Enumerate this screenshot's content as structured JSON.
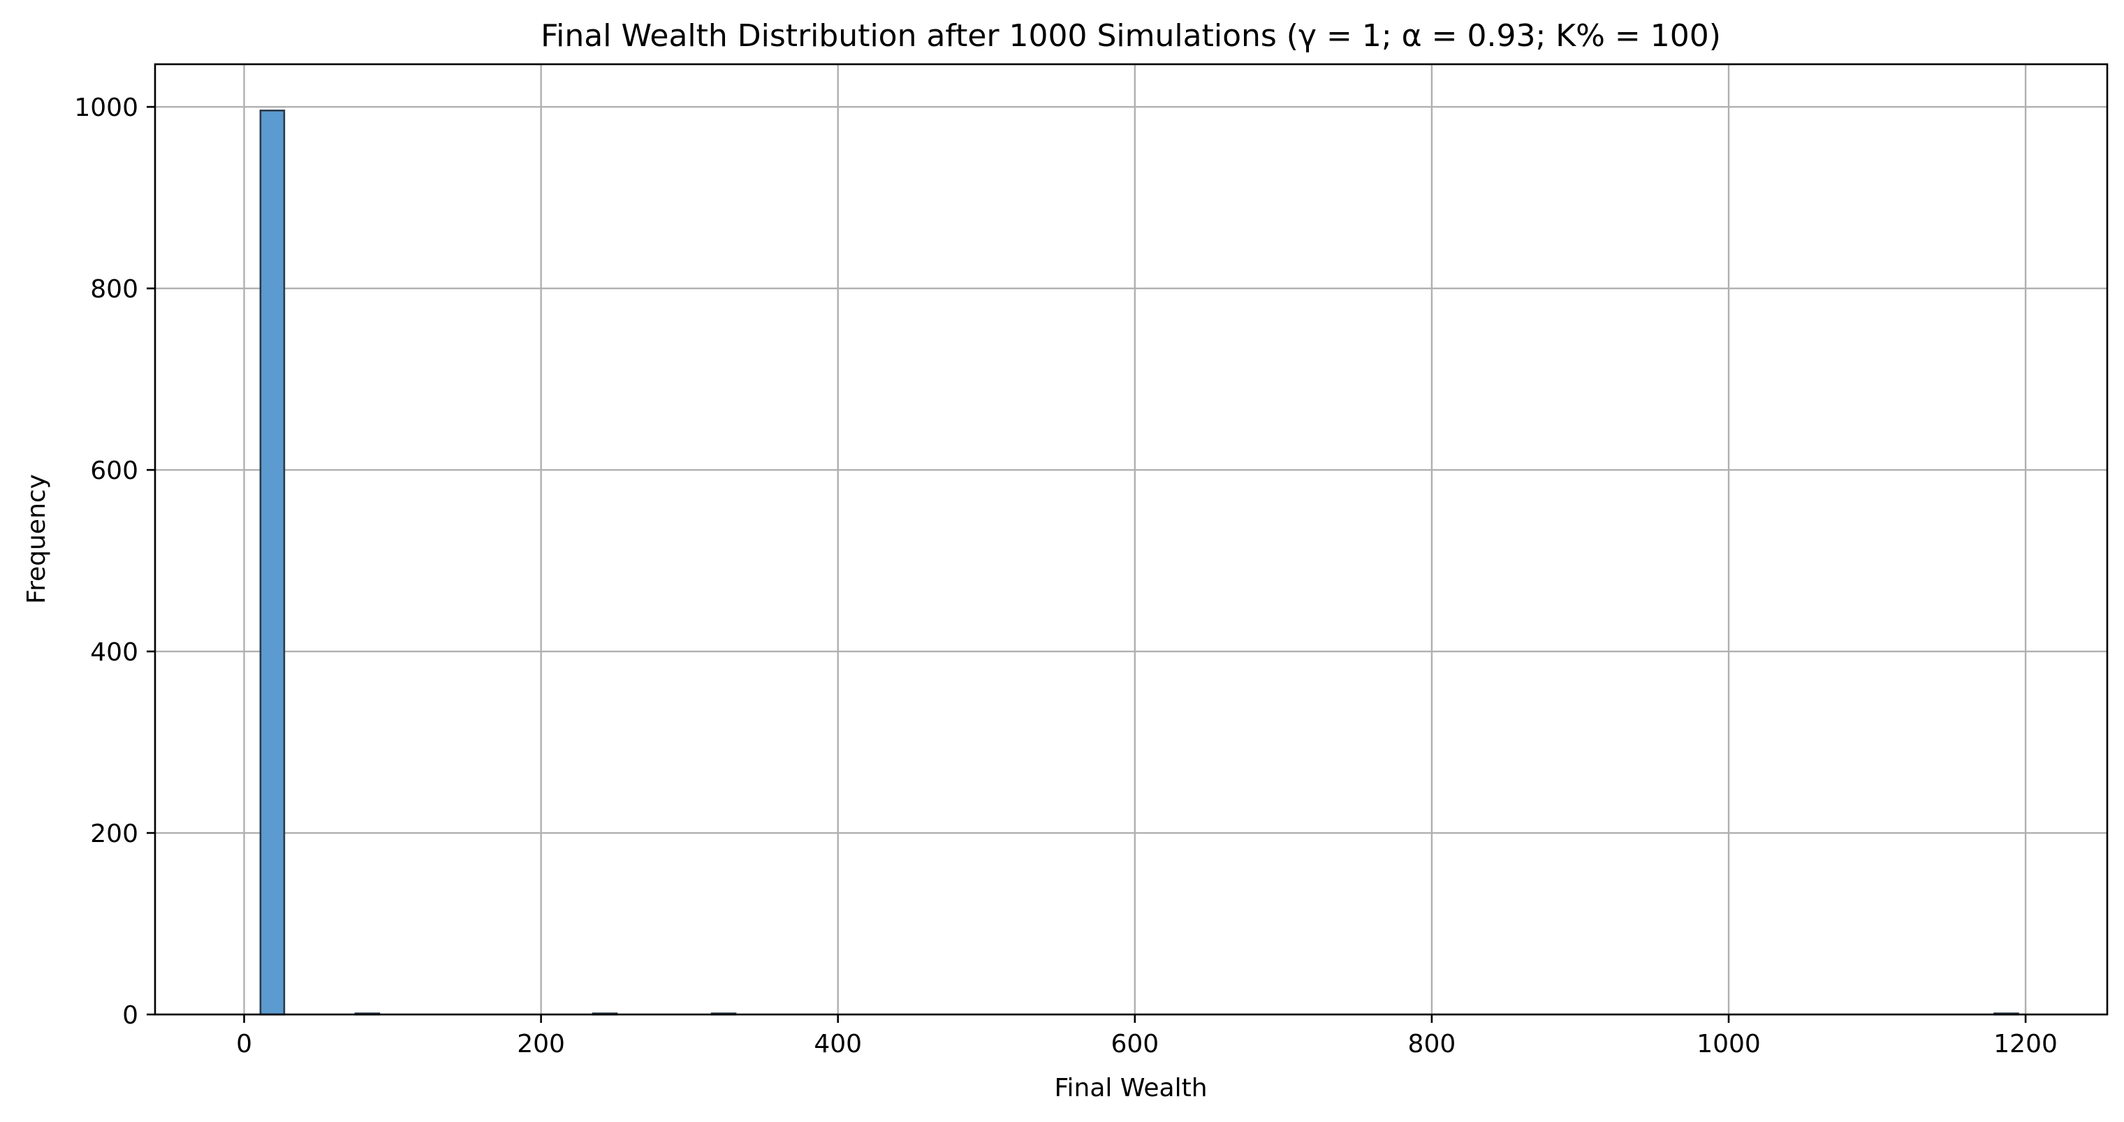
{
  "chart_data": {
    "type": "bar",
    "title": "Final Wealth Distribution after 1000 Simulations (γ = 1; α = 0.93; K% = 100)",
    "xlabel": "Final Wealth",
    "ylabel": "Frequency",
    "xlim": [
      -60,
      1255
    ],
    "ylim": [
      0,
      1047
    ],
    "xticks": [
      0,
      200,
      400,
      600,
      800,
      1000,
      1200
    ],
    "yticks": [
      0,
      200,
      400,
      600,
      800,
      1000
    ],
    "grid": true,
    "bin_width": 16,
    "bars": [
      {
        "x0": 11,
        "x1": 27,
        "count": 996
      },
      {
        "x0": 75,
        "x1": 91,
        "count": 1
      },
      {
        "x0": 235,
        "x1": 251,
        "count": 1
      },
      {
        "x0": 315,
        "x1": 331,
        "count": 1
      },
      {
        "x0": 1179,
        "x1": 1195,
        "count": 1
      }
    ],
    "colors": {
      "bar_fill": "#5b9bd0",
      "bar_edge": "#2b3a4a",
      "grid": "#b0b0b0"
    }
  }
}
